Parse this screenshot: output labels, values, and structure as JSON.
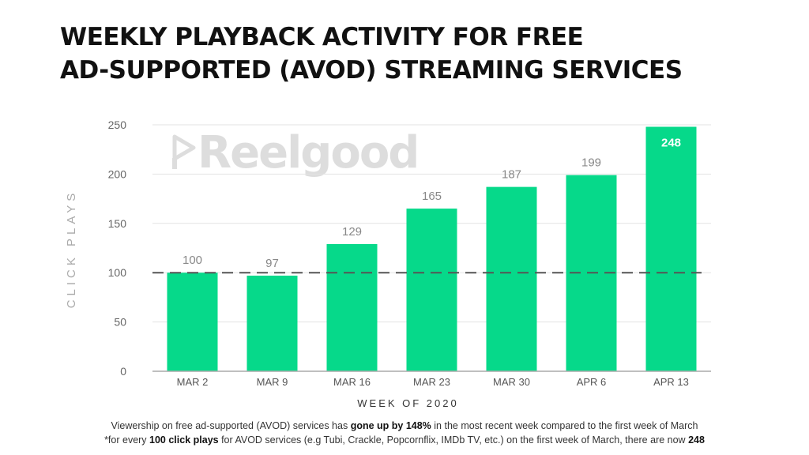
{
  "title": {
    "line1": "WEEKLY PLAYBACK ACTIVITY FOR FREE",
    "line2": "AD-SUPPORTED (AVOD) STREAMING SERVICES"
  },
  "watermark": {
    "text": "Reelgood",
    "icon": "reelgood-play-logo-icon"
  },
  "chart_data": {
    "type": "bar",
    "categories": [
      "MAR 2",
      "MAR 9",
      "MAR 16",
      "MAR 23",
      "MAR 30",
      "APR 6",
      "APR 13"
    ],
    "values": [
      100,
      97,
      129,
      165,
      187,
      199,
      248
    ],
    "xlabel": "WEEK OF 2020",
    "ylabel": "CLICK PLAYS",
    "ylim": [
      0,
      250
    ],
    "yticks": [
      0,
      50,
      100,
      150,
      200,
      250
    ],
    "grid": true,
    "reference_line": {
      "value": 100,
      "style": "dashed"
    },
    "bar_color": "#06d98a"
  },
  "footnote": {
    "line1_pre": "Viewership on free ad-supported (AVOD) services has ",
    "line1_bold": "gone up by 148%",
    "line1_post": " in the most recent week compared to the first week of March",
    "line2_pre": "*for every ",
    "line2_bold": "100 click plays",
    "line2_mid": " for AVOD services (e.g Tubi, Crackle, Popcornflix, IMDb TV, etc.) on the first week of March, there are now ",
    "line2_bold2": "248"
  }
}
